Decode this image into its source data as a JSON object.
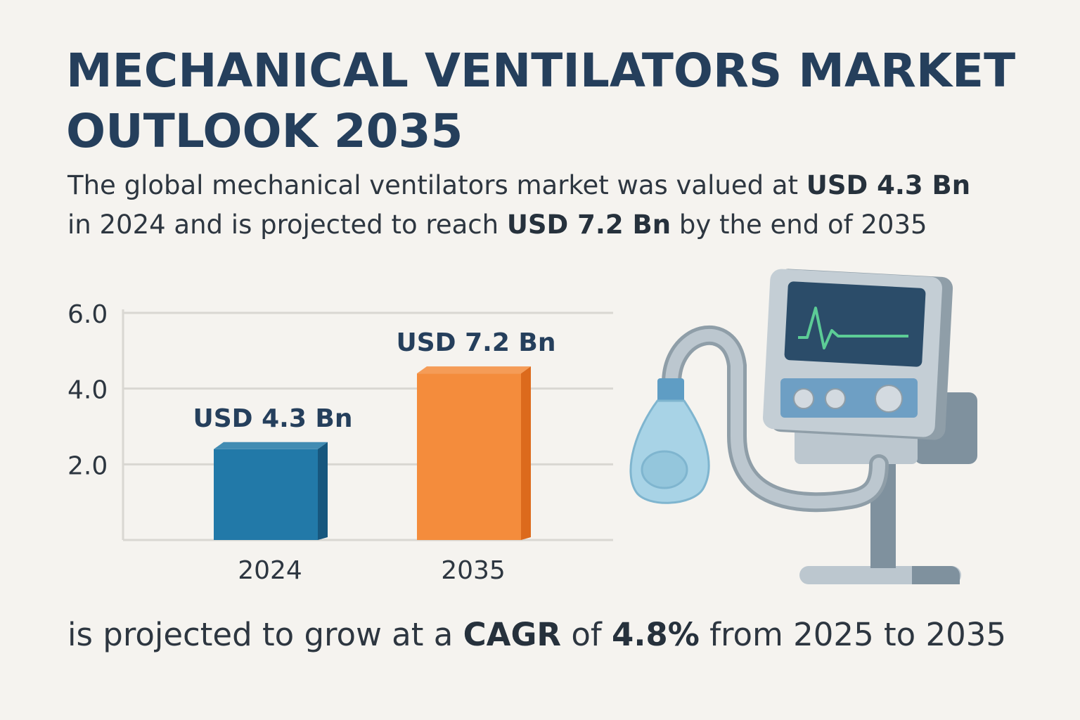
{
  "title_line1": "MECHANICAL VENTILATORS MARKET",
  "title_line2": "OUTLOOK 2035",
  "subtitle": {
    "part1": "The global mechanical ventilators market was valued at ",
    "value1": "USD 4.3 Bn",
    "part2": " in 2024 and is projected to reach ",
    "value2": "USD 7.2 Bn",
    "part3": " by the end of 2035"
  },
  "footer": {
    "part1": "is projected to grow at a ",
    "cagr_label": "CAGR",
    "part2": " of ",
    "cagr_value": "4.8%",
    "part3": " from 2025 to 2035"
  },
  "chart_data": {
    "type": "bar",
    "categories": [
      "2024",
      "2035"
    ],
    "values": [
      4.3,
      7.2
    ],
    "plotted_heights": [
      2.4,
      4.4
    ],
    "data_labels": [
      "USD 4.3 Bn",
      "USD 7.2 Bn"
    ],
    "unit": "USD Bn",
    "yticks": [
      "2.0",
      "4.0",
      "6.0"
    ],
    "ylim": [
      0,
      6
    ],
    "grid": true,
    "colors": [
      "#2279a8",
      "#f48c3c"
    ],
    "side_colors": [
      "#17577e",
      "#dc6a1c"
    ]
  }
}
